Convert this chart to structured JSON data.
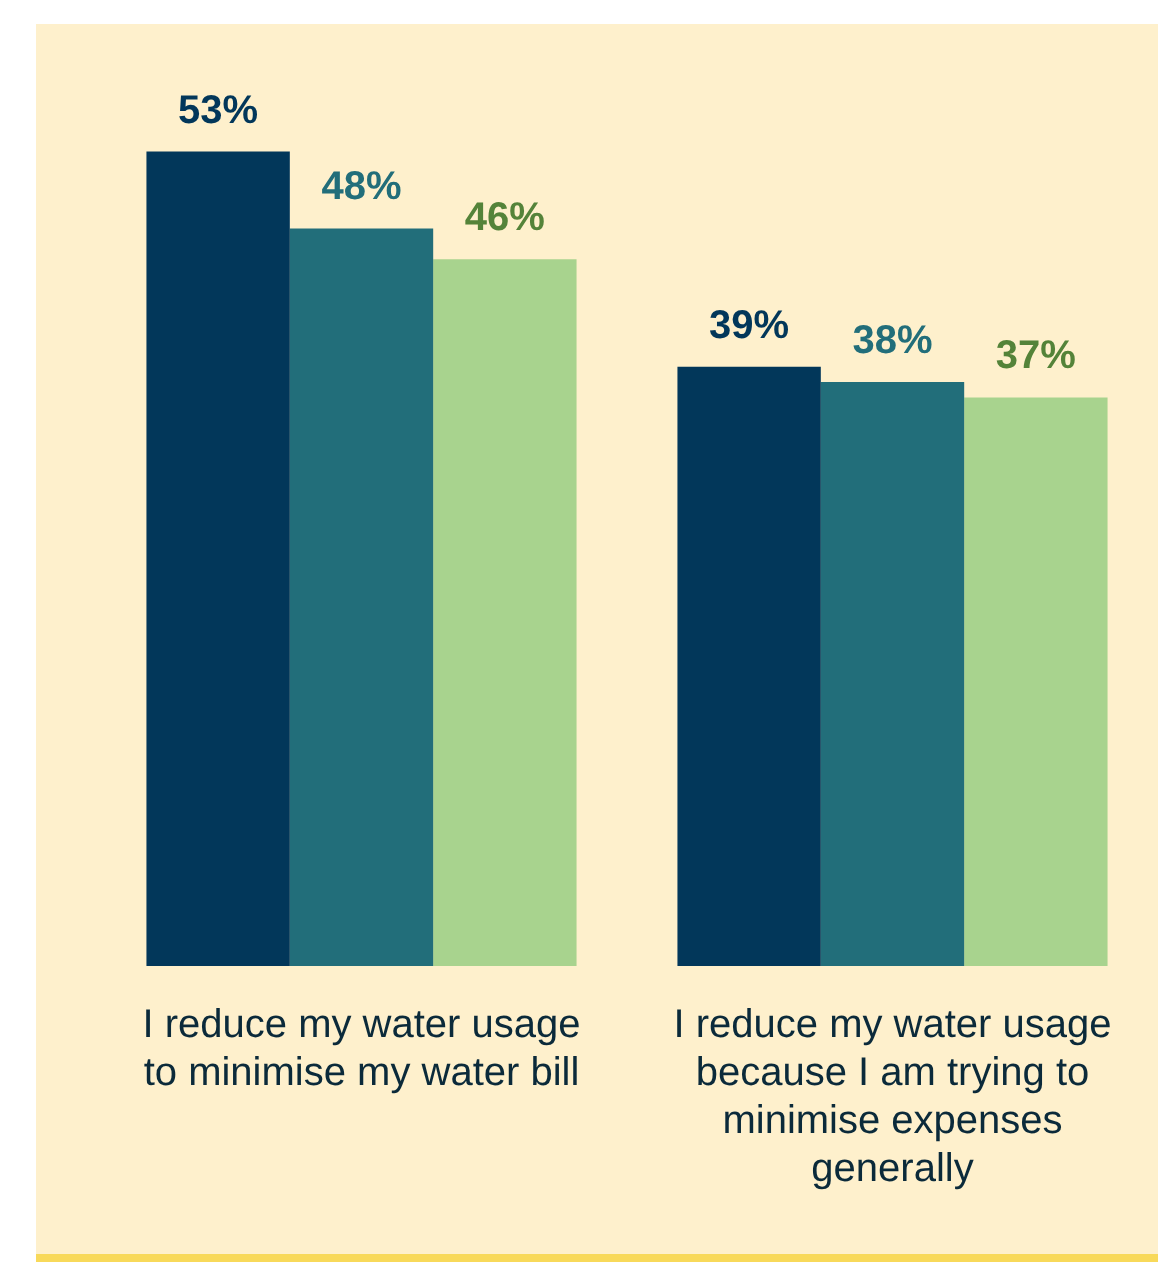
{
  "chart_data": {
    "type": "bar",
    "categories": [
      "I reduce my water usage to minimise my water bill",
      "I reduce my water usage because I am trying to minimise expenses generally"
    ],
    "series": [
      {
        "color": "#02375a",
        "values": [
          53,
          39
        ],
        "value_labels": [
          "53%",
          "39%"
        ]
      },
      {
        "color": "#226e7a",
        "values": [
          48,
          38
        ],
        "value_labels": [
          "48%",
          "38%"
        ]
      },
      {
        "color": "#a8d38e",
        "values": [
          46,
          37
        ],
        "value_labels": [
          "46%",
          "37%"
        ]
      }
    ],
    "tick_labels": "x"
  }
}
